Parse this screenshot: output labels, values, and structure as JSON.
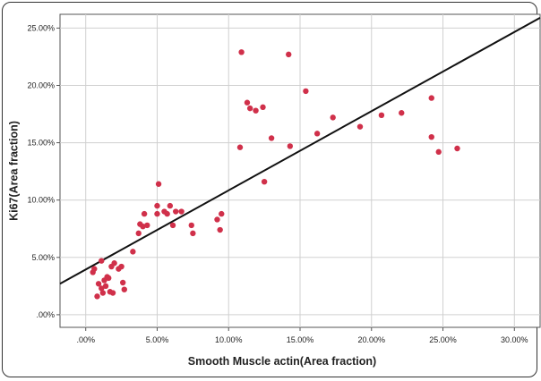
{
  "chart_data": {
    "type": "scatter",
    "title": "",
    "xlabel": "Smooth Muscle actin(Area fraction)",
    "ylabel": "Ki67(Area fraction)",
    "xlim": [
      -0.018,
      0.318
    ],
    "ylim": [
      -0.011,
      0.262
    ],
    "x_ticks": [
      0,
      0.05,
      0.1,
      0.15,
      0.2,
      0.25,
      0.3
    ],
    "x_tick_labels": [
      ".00%",
      "5.00%",
      "10.00%",
      "15.00%",
      "20.00%",
      "25.00%",
      "30.00%"
    ],
    "y_ticks": [
      0,
      0.05,
      0.1,
      0.15,
      0.2,
      0.25
    ],
    "y_tick_labels": [
      ".00%",
      "5.00%",
      "10.00%",
      "15.00%",
      "20.00%",
      "25.00%"
    ],
    "grid": true,
    "marker_color": "#d0304a",
    "line_color": "#111111",
    "fit_line": {
      "x": [
        -0.018,
        0.318
      ],
      "y": [
        0.027,
        0.259
      ]
    },
    "points": [
      {
        "x": 0.005,
        "y": 0.037
      },
      {
        "x": 0.006,
        "y": 0.04
      },
      {
        "x": 0.008,
        "y": 0.016
      },
      {
        "x": 0.009,
        "y": 0.027
      },
      {
        "x": 0.011,
        "y": 0.047
      },
      {
        "x": 0.011,
        "y": 0.023
      },
      {
        "x": 0.012,
        "y": 0.019
      },
      {
        "x": 0.013,
        "y": 0.03
      },
      {
        "x": 0.014,
        "y": 0.025
      },
      {
        "x": 0.015,
        "y": 0.033
      },
      {
        "x": 0.016,
        "y": 0.032
      },
      {
        "x": 0.017,
        "y": 0.02
      },
      {
        "x": 0.018,
        "y": 0.042
      },
      {
        "x": 0.019,
        "y": 0.019
      },
      {
        "x": 0.02,
        "y": 0.045
      },
      {
        "x": 0.023,
        "y": 0.04
      },
      {
        "x": 0.025,
        "y": 0.042
      },
      {
        "x": 0.026,
        "y": 0.028
      },
      {
        "x": 0.027,
        "y": 0.022
      },
      {
        "x": 0.033,
        "y": 0.055
      },
      {
        "x": 0.037,
        "y": 0.071
      },
      {
        "x": 0.038,
        "y": 0.079
      },
      {
        "x": 0.04,
        "y": 0.077
      },
      {
        "x": 0.041,
        "y": 0.088
      },
      {
        "x": 0.043,
        "y": 0.078
      },
      {
        "x": 0.05,
        "y": 0.095
      },
      {
        "x": 0.05,
        "y": 0.088
      },
      {
        "x": 0.051,
        "y": 0.114
      },
      {
        "x": 0.055,
        "y": 0.09
      },
      {
        "x": 0.057,
        "y": 0.088
      },
      {
        "x": 0.059,
        "y": 0.095
      },
      {
        "x": 0.061,
        "y": 0.078
      },
      {
        "x": 0.063,
        "y": 0.09
      },
      {
        "x": 0.067,
        "y": 0.09
      },
      {
        "x": 0.074,
        "y": 0.078
      },
      {
        "x": 0.075,
        "y": 0.071
      },
      {
        "x": 0.092,
        "y": 0.083
      },
      {
        "x": 0.094,
        "y": 0.074
      },
      {
        "x": 0.095,
        "y": 0.088
      },
      {
        "x": 0.108,
        "y": 0.146
      },
      {
        "x": 0.109,
        "y": 0.229
      },
      {
        "x": 0.113,
        "y": 0.185
      },
      {
        "x": 0.115,
        "y": 0.18
      },
      {
        "x": 0.119,
        "y": 0.178
      },
      {
        "x": 0.124,
        "y": 0.181
      },
      {
        "x": 0.125,
        "y": 0.116
      },
      {
        "x": 0.13,
        "y": 0.154
      },
      {
        "x": 0.142,
        "y": 0.227
      },
      {
        "x": 0.143,
        "y": 0.147
      },
      {
        "x": 0.154,
        "y": 0.195
      },
      {
        "x": 0.162,
        "y": 0.158
      },
      {
        "x": 0.173,
        "y": 0.172
      },
      {
        "x": 0.192,
        "y": 0.164
      },
      {
        "x": 0.207,
        "y": 0.174
      },
      {
        "x": 0.221,
        "y": 0.176
      },
      {
        "x": 0.242,
        "y": 0.155
      },
      {
        "x": 0.242,
        "y": 0.189
      },
      {
        "x": 0.247,
        "y": 0.142
      },
      {
        "x": 0.26,
        "y": 0.145
      }
    ]
  }
}
